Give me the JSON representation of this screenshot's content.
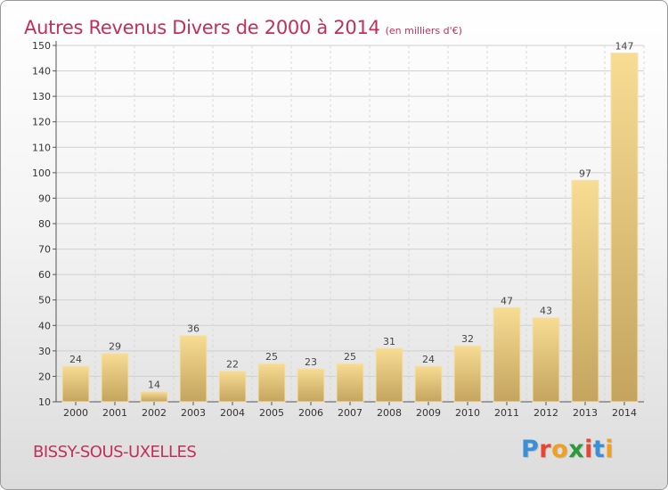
{
  "header": {
    "title": "Autres Revenus Divers de 2000 à 2014",
    "unit": "(en milliers d'€)"
  },
  "commune": "BISSY-SOUS-UXELLES",
  "logo": {
    "letters": [
      "P",
      "r",
      "o",
      "x",
      "i",
      "t",
      "i"
    ],
    "colors": [
      "#3a8fd6",
      "#e8462e",
      "#f0a020",
      "#2a9a3a",
      "#e8462e",
      "#3a8fd6",
      "#f0a020"
    ]
  },
  "colors": {
    "title": "#c0305a",
    "bar_light": "#f8dc94",
    "bar_dark": "#c4a45e"
  },
  "chart_data": {
    "type": "bar",
    "categories": [
      "2000",
      "2001",
      "2002",
      "2003",
      "2004",
      "2005",
      "2006",
      "2007",
      "2008",
      "2009",
      "2010",
      "2011",
      "2012",
      "2013",
      "2014"
    ],
    "values": [
      24,
      29,
      14,
      36,
      22,
      25,
      23,
      25,
      31,
      24,
      32,
      47,
      43,
      97,
      147
    ],
    "ylim": [
      10,
      150
    ],
    "yticks": [
      10,
      20,
      30,
      40,
      50,
      60,
      70,
      80,
      90,
      100,
      110,
      120,
      130,
      140,
      150
    ],
    "grid": true,
    "data_labels": true
  }
}
